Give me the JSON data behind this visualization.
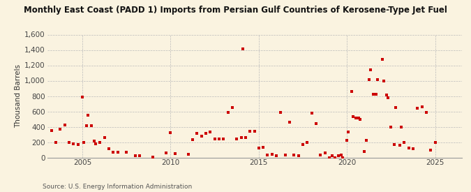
{
  "title": "Monthly East Coast (PADD 1) Imports from Persian Gulf Countries of Kerosene-Type Jet Fuel",
  "ylabel": "Thousand Barrels",
  "source": "Source: U.S. Energy Information Administration",
  "background_color": "#faf3e0",
  "dot_color": "#cc0000",
  "ylim": [
    0,
    1600
  ],
  "yticks": [
    0,
    200,
    400,
    600,
    800,
    1000,
    1200,
    1400,
    1600
  ],
  "xlim": [
    2003.0,
    2026.5
  ],
  "xticks": [
    2005,
    2010,
    2015,
    2020,
    2025
  ],
  "data_x": [
    2003.25,
    2003.5,
    2003.75,
    2004.0,
    2004.25,
    2004.5,
    2004.75,
    2005.0,
    2005.08,
    2005.25,
    2005.33,
    2005.5,
    2005.67,
    2005.75,
    2006.0,
    2006.25,
    2006.5,
    2006.75,
    2007.0,
    2007.5,
    2008.0,
    2008.25,
    2009.0,
    2009.75,
    2010.0,
    2010.25,
    2011.0,
    2011.25,
    2011.5,
    2011.75,
    2012.0,
    2012.25,
    2012.5,
    2012.75,
    2013.0,
    2013.25,
    2013.5,
    2013.75,
    2014.0,
    2014.08,
    2014.25,
    2014.5,
    2014.75,
    2015.0,
    2015.25,
    2015.5,
    2015.75,
    2016.0,
    2016.25,
    2016.5,
    2016.75,
    2017.0,
    2017.25,
    2017.5,
    2017.75,
    2018.0,
    2018.25,
    2018.5,
    2018.75,
    2019.0,
    2019.17,
    2019.33,
    2019.5,
    2019.67,
    2019.75,
    2020.0,
    2020.08,
    2020.25,
    2020.33,
    2020.5,
    2020.67,
    2020.75,
    2021.0,
    2021.08,
    2021.25,
    2021.33,
    2021.5,
    2021.67,
    2021.75,
    2022.0,
    2022.08,
    2022.25,
    2022.33,
    2022.5,
    2022.67,
    2022.75,
    2023.0,
    2023.08,
    2023.25,
    2023.5,
    2023.75,
    2024.0,
    2024.25,
    2024.5,
    2024.75,
    2025.0
  ],
  "data_y": [
    350,
    200,
    370,
    420,
    200,
    180,
    165,
    790,
    200,
    410,
    550,
    410,
    210,
    175,
    200,
    260,
    110,
    70,
    65,
    70,
    20,
    20,
    5,
    60,
    325,
    50,
    40,
    230,
    315,
    280,
    315,
    330,
    240,
    240,
    240,
    590,
    650,
    240,
    260,
    1415,
    255,
    340,
    340,
    120,
    130,
    30,
    40,
    20,
    590,
    30,
    460,
    30,
    20,
    170,
    200,
    580,
    440,
    30,
    60,
    0,
    20,
    0,
    20,
    30,
    0,
    220,
    330,
    860,
    535,
    510,
    510,
    495,
    75,
    220,
    1015,
    1145,
    825,
    820,
    1010,
    1280,
    995,
    810,
    780,
    400,
    170,
    650,
    160,
    400,
    200,
    120,
    110,
    640,
    660,
    590,
    100,
    200
  ],
  "title_fontsize": 8.5,
  "tick_fontsize": 7.5,
  "ylabel_fontsize": 7.5,
  "source_fontsize": 6.5
}
